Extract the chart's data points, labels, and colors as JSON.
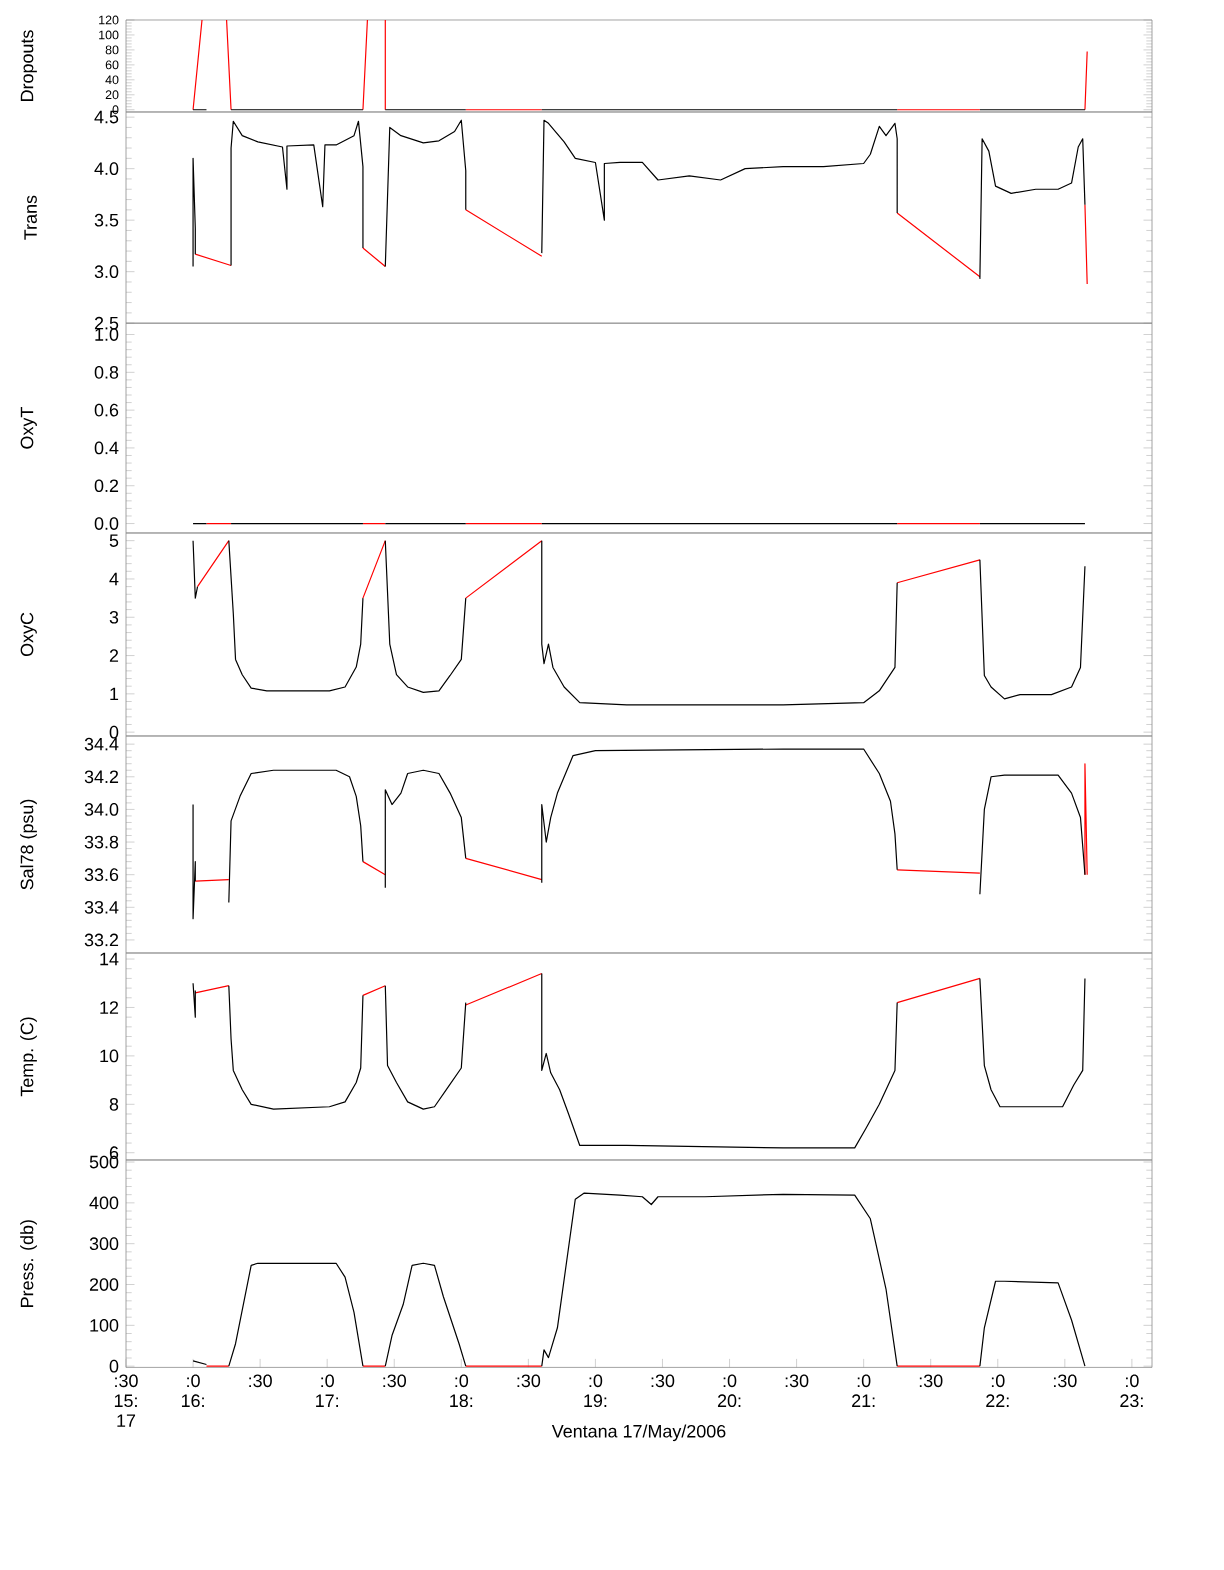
{
  "chart_data": [
    {
      "type": "line",
      "ylabel": "Dropouts",
      "xlim": [
        "2006-05-17T15:30",
        "2006-05-17T23:09"
      ],
      "ylim": [
        -3,
        120
      ],
      "yticks": [
        0,
        20,
        40,
        60,
        80,
        100,
        120
      ],
      "tick_labels": "y",
      "marker": "none",
      "line_style": "solid",
      "series": [
        {
          "color": "#ff0000",
          "x": [
            "2006-05-17T16:00",
            "2006-05-17T16:04",
            null,
            "2006-05-17T16:15",
            "2006-05-17T16:17",
            null,
            "2006-05-17T17:16",
            "2006-05-17T17:18",
            null,
            "2006-05-17T17:26",
            "2006-05-17T17:26",
            null,
            "2006-05-17T18:02",
            "2006-05-17T18:36",
            null,
            "2006-05-17T21:15",
            "2006-05-17T21:52",
            null,
            "2006-05-17T22:39",
            "2006-05-17T22:40"
          ],
          "values": [
            0,
            120,
            null,
            120,
            0,
            null,
            0,
            120,
            null,
            120,
            0,
            null,
            0,
            0,
            null,
            0,
            0,
            null,
            0,
            78
          ]
        },
        {
          "color": "#000000",
          "x": [
            "2006-05-17T16:00",
            "2006-05-17T16:06",
            null,
            "2006-05-17T16:17",
            "2006-05-17T17:16",
            null,
            "2006-05-17T17:26",
            "2006-05-17T18:02",
            null,
            "2006-05-17T18:36",
            "2006-05-17T21:15",
            null,
            "2006-05-17T21:52",
            "2006-05-17T22:39"
          ],
          "values": [
            0,
            0,
            null,
            0,
            0,
            null,
            0,
            0,
            null,
            0,
            0,
            null,
            0,
            0
          ]
        }
      ]
    },
    {
      "type": "line",
      "ylabel": "Trans",
      "xlim": [
        "2006-05-17T15:30",
        "2006-05-17T23:09"
      ],
      "ylim": [
        2.5,
        4.55
      ],
      "yticks": [
        {
          "value": 2.5,
          "label": "2.5"
        },
        {
          "value": 3,
          "label": "3.0"
        },
        {
          "value": 3.5,
          "label": "3.5"
        },
        {
          "value": 4,
          "label": "4.0"
        },
        {
          "value": 4.5,
          "label": "4.5"
        }
      ],
      "tick_labels": "y",
      "marker": "none",
      "line_style": "solid",
      "series": [
        {
          "color": "#ff0000",
          "x": [
            "2006-05-17T16:01",
            "2006-05-17T16:17",
            null,
            "2006-05-17T17:16",
            "2006-05-17T17:26",
            null,
            "2006-05-17T18:02",
            "2006-05-17T18:36",
            null,
            "2006-05-17T21:15",
            "2006-05-17T21:52",
            null,
            "2006-05-17T22:39",
            "2006-05-17T22:40"
          ],
          "values": [
            3.17,
            3.06,
            null,
            3.23,
            3.05,
            null,
            3.6,
            3.15,
            null,
            3.57,
            2.95,
            null,
            3.65,
            2.88
          ]
        },
        {
          "color": "#000000",
          "x": [
            "2006-05-17T16:00",
            "2006-05-17T16:00",
            "2006-05-17T16:01",
            "2006-05-17T16:01",
            null,
            "2006-05-17T16:17",
            "2006-05-17T16:17",
            "2006-05-17T16:18",
            "2006-05-17T16:22",
            "2006-05-17T16:29",
            "2006-05-17T16:40",
            "2006-05-17T16:42",
            "2006-05-17T16:42",
            "2006-05-17T16:54",
            "2006-05-17T16:58",
            "2006-05-17T16:59",
            "2006-05-17T17:04",
            "2006-05-17T17:12",
            "2006-05-17T17:14",
            "2006-05-17T17:16",
            "2006-05-17T17:16",
            null,
            "2006-05-17T17:26",
            "2006-05-17T17:28",
            "2006-05-17T17:33",
            "2006-05-17T17:43",
            "2006-05-17T17:50",
            "2006-05-17T17:57",
            "2006-05-17T18:00",
            "2006-05-17T18:02",
            "2006-05-17T18:02",
            null,
            "2006-05-17T18:36",
            "2006-05-17T18:37",
            "2006-05-17T18:39",
            "2006-05-17T18:46",
            "2006-05-17T18:51",
            "2006-05-17T19:00",
            "2006-05-17T19:04",
            "2006-05-17T19:04",
            "2006-05-17T19:11",
            "2006-05-17T19:21",
            "2006-05-17T19:28",
            "2006-05-17T19:42",
            "2006-05-17T19:56",
            "2006-05-17T20:07",
            "2006-05-17T20:24",
            "2006-05-17T20:42",
            "2006-05-17T21:00",
            "2006-05-17T21:03",
            "2006-05-17T21:07",
            "2006-05-17T21:10",
            "2006-05-17T21:14",
            "2006-05-17T21:15",
            "2006-05-17T21:15",
            null,
            "2006-05-17T21:52",
            "2006-05-17T21:53",
            "2006-05-17T21:56",
            "2006-05-17T21:59",
            "2006-05-17T22:06",
            "2006-05-17T22:17",
            "2006-05-17T22:27",
            "2006-05-17T22:33",
            "2006-05-17T22:36",
            "2006-05-17T22:38",
            "2006-05-17T22:39"
          ],
          "values": [
            3.05,
            4.1,
            3.42,
            3.17,
            null,
            3.06,
            4.2,
            4.46,
            4.32,
            4.26,
            4.21,
            3.8,
            4.22,
            4.23,
            3.63,
            4.23,
            4.23,
            4.32,
            4.46,
            4.02,
            3.23,
            null,
            3.05,
            4.4,
            4.32,
            4.25,
            4.27,
            4.36,
            4.47,
            3.98,
            3.6,
            null,
            3.18,
            4.47,
            4.44,
            4.26,
            4.1,
            4.06,
            3.5,
            4.05,
            4.06,
            4.06,
            3.89,
            3.93,
            3.89,
            4.0,
            4.02,
            4.02,
            4.05,
            4.14,
            4.41,
            4.32,
            4.44,
            4.29,
            3.57,
            null,
            2.93,
            4.29,
            4.17,
            3.83,
            3.76,
            3.8,
            3.8,
            3.86,
            4.21,
            4.29,
            3.65
          ]
        }
      ]
    },
    {
      "type": "line",
      "ylabel": "OxyT",
      "xlim": [
        "2006-05-17T15:30",
        "2006-05-17T23:09"
      ],
      "ylim": [
        -0.05,
        1.06
      ],
      "yticks": [
        {
          "value": 0,
          "label": "0.0"
        },
        {
          "value": 0.2,
          "label": "0.2"
        },
        {
          "value": 0.4,
          "label": "0.4"
        },
        {
          "value": 0.6,
          "label": "0.6"
        },
        {
          "value": 0.8,
          "label": "0.8"
        },
        {
          "value": 1,
          "label": "1.0"
        }
      ],
      "tick_labels": "y",
      "marker": "none",
      "line_style": "solid",
      "series": [
        {
          "color": "#ff0000",
          "x": [
            "2006-05-17T16:06",
            "2006-05-17T16:17",
            null,
            "2006-05-17T17:16",
            "2006-05-17T17:26",
            null,
            "2006-05-17T18:02",
            "2006-05-17T18:36",
            null,
            "2006-05-17T21:15",
            "2006-05-17T21:52"
          ],
          "values": [
            0,
            0,
            null,
            0,
            0,
            null,
            0,
            0,
            null,
            0,
            0
          ]
        },
        {
          "color": "#000000",
          "x": [
            "2006-05-17T16:00",
            "2006-05-17T16:06",
            null,
            "2006-05-17T16:17",
            "2006-05-17T17:16",
            null,
            "2006-05-17T17:26",
            "2006-05-17T18:02",
            null,
            "2006-05-17T18:36",
            "2006-05-17T21:15",
            null,
            "2006-05-17T21:52",
            "2006-05-17T22:39"
          ],
          "values": [
            0,
            0,
            null,
            0,
            0,
            null,
            0,
            0,
            null,
            0,
            0,
            null,
            0,
            0
          ]
        }
      ]
    },
    {
      "type": "line",
      "ylabel": "OxyC",
      "xlim": [
        "2006-05-17T15:30",
        "2006-05-17T23:09"
      ],
      "ylim": [
        -0.1,
        5.2
      ],
      "yticks": [
        0,
        1,
        2,
        3,
        4,
        5
      ],
      "tick_labels": "y",
      "marker": "none",
      "line_style": "solid",
      "series": [
        {
          "color": "#ff0000",
          "x": [
            "2006-05-17T16:02",
            "2006-05-17T16:16",
            null,
            "2006-05-17T17:16",
            "2006-05-17T17:26",
            null,
            "2006-05-17T18:02",
            "2006-05-17T18:36",
            null,
            "2006-05-17T21:15",
            "2006-05-17T21:52"
          ],
          "values": [
            3.8,
            5.0,
            null,
            3.5,
            5.0,
            null,
            3.5,
            5.0,
            null,
            3.9,
            4.5
          ]
        },
        {
          "color": "#000000",
          "x": [
            "2006-05-17T16:00",
            "2006-05-17T16:01",
            "2006-05-17T16:02",
            null,
            "2006-05-17T16:16",
            "2006-05-17T16:18",
            "2006-05-17T16:19",
            "2006-05-17T16:22",
            "2006-05-17T16:26",
            "2006-05-17T16:33",
            "2006-05-17T17:01",
            "2006-05-17T17:08",
            "2006-05-17T17:13",
            "2006-05-17T17:15",
            "2006-05-17T17:16",
            null,
            "2006-05-17T17:26",
            "2006-05-17T17:28",
            "2006-05-17T17:31",
            "2006-05-17T17:36",
            "2006-05-17T17:43",
            "2006-05-17T17:50",
            "2006-05-17T17:55",
            "2006-05-17T18:00",
            "2006-05-17T18:02",
            null,
            "2006-05-17T18:36",
            "2006-05-17T18:36",
            "2006-05-17T18:37",
            "2006-05-17T18:39",
            "2006-05-17T18:41",
            "2006-05-17T18:46",
            "2006-05-17T18:53",
            "2006-05-17T19:14",
            "2006-05-17T20:24",
            "2006-05-17T21:00",
            "2006-05-17T21:07",
            "2006-05-17T21:14",
            "2006-05-17T21:15",
            null,
            "2006-05-17T21:52",
            "2006-05-17T21:54",
            "2006-05-17T21:57",
            "2006-05-17T22:03",
            "2006-05-17T22:10",
            "2006-05-17T22:24",
            "2006-05-17T22:33",
            "2006-05-17T22:37",
            "2006-05-17T22:39"
          ],
          "values": [
            5.0,
            3.5,
            3.8,
            null,
            5.0,
            3.1,
            1.9,
            1.5,
            1.15,
            1.08,
            1.08,
            1.18,
            1.7,
            2.3,
            3.5,
            null,
            5.0,
            2.3,
            1.5,
            1.18,
            1.04,
            1.08,
            1.48,
            1.9,
            3.5,
            null,
            5.0,
            2.3,
            1.79,
            2.3,
            1.69,
            1.18,
            0.77,
            0.71,
            0.71,
            0.77,
            1.08,
            1.69,
            3.9,
            null,
            4.5,
            1.48,
            1.18,
            0.87,
            0.98,
            0.98,
            1.18,
            1.69,
            4.33
          ]
        }
      ]
    },
    {
      "type": "line",
      "ylabel": "Sal78 (psu)",
      "xlim": [
        "2006-05-17T15:30",
        "2006-05-17T23:09"
      ],
      "ylim": [
        33.12,
        34.45
      ],
      "yticks": [
        33.2,
        33.4,
        33.6,
        33.8,
        {
          "value": 34,
          "label": "34.0"
        },
        34.2,
        34.4
      ],
      "tick_labels": "y",
      "marker": "none",
      "line_style": "solid",
      "series": [
        {
          "color": "#ff0000",
          "x": [
            "2006-05-17T16:01",
            "2006-05-17T16:16",
            null,
            "2006-05-17T17:16",
            "2006-05-17T17:26",
            null,
            "2006-05-17T18:02",
            "2006-05-17T18:36",
            null,
            "2006-05-17T21:15",
            "2006-05-17T21:52",
            null,
            "2006-05-17T22:39",
            "2006-05-17T22:39",
            "2006-05-17T22:40"
          ],
          "values": [
            33.56,
            33.57,
            null,
            33.68,
            33.6,
            null,
            33.7,
            33.57,
            null,
            33.63,
            33.61,
            null,
            33.6,
            34.28,
            33.6
          ]
        },
        {
          "color": "#000000",
          "x": [
            "2006-05-17T16:00",
            "2006-05-17T16:00",
            "2006-05-17T16:01",
            "2006-05-17T16:01",
            null,
            "2006-05-17T16:16",
            "2006-05-17T16:17",
            "2006-05-17T16:21",
            "2006-05-17T16:26",
            "2006-05-17T16:36",
            "2006-05-17T17:04",
            "2006-05-17T17:10",
            "2006-05-17T17:13",
            "2006-05-17T17:15",
            "2006-05-17T17:16",
            null,
            "2006-05-17T17:26",
            "2006-05-17T17:26",
            "2006-05-17T17:29",
            "2006-05-17T17:33",
            "2006-05-17T17:36",
            "2006-05-17T17:43",
            "2006-05-17T17:50",
            "2006-05-17T17:55",
            "2006-05-17T18:00",
            "2006-05-17T18:02",
            null,
            "2006-05-17T18:36",
            "2006-05-17T18:36",
            "2006-05-17T18:38",
            "2006-05-17T18:40",
            "2006-05-17T18:43",
            "2006-05-17T18:50",
            "2006-05-17T19:00",
            "2006-05-17T20:24",
            "2006-05-17T21:00",
            "2006-05-17T21:07",
            "2006-05-17T21:12",
            "2006-05-17T21:14",
            "2006-05-17T21:15",
            null,
            "2006-05-17T21:52",
            "2006-05-17T21:54",
            "2006-05-17T21:57",
            "2006-05-17T22:03",
            "2006-05-17T22:27",
            "2006-05-17T22:33",
            "2006-05-17T22:37",
            "2006-05-17T22:39"
          ],
          "values": [
            34.03,
            33.33,
            33.68,
            33.56,
            null,
            33.43,
            33.93,
            34.08,
            34.22,
            34.24,
            34.24,
            34.2,
            34.08,
            33.9,
            33.68,
            null,
            33.52,
            34.12,
            34.03,
            34.1,
            34.22,
            34.24,
            34.22,
            34.1,
            33.95,
            33.7,
            null,
            33.55,
            34.03,
            33.8,
            33.95,
            34.1,
            34.33,
            34.36,
            34.37,
            34.37,
            34.22,
            34.05,
            33.85,
            33.63,
            null,
            33.48,
            34.0,
            34.2,
            34.21,
            34.21,
            34.1,
            33.95,
            33.6
          ]
        }
      ]
    },
    {
      "type": "line",
      "ylabel": "Temp. (C)",
      "xlim": [
        "2006-05-17T15:30",
        "2006-05-17T23:09"
      ],
      "ylim": [
        5.7,
        14.25
      ],
      "yticks": [
        6,
        8,
        10,
        12,
        14
      ],
      "tick_labels": "y",
      "marker": "none",
      "line_style": "solid",
      "series": [
        {
          "color": "#ff0000",
          "x": [
            "2006-05-17T16:01",
            "2006-05-17T16:16",
            null,
            "2006-05-17T17:16",
            "2006-05-17T17:26",
            null,
            "2006-05-17T18:02",
            "2006-05-17T18:36",
            null,
            "2006-05-17T21:15",
            "2006-05-17T21:52"
          ],
          "values": [
            12.6,
            12.9,
            null,
            12.5,
            12.9,
            null,
            12.1,
            13.4,
            null,
            12.2,
            13.2
          ]
        },
        {
          "color": "#000000",
          "x": [
            "2006-05-17T16:00",
            "2006-05-17T16:01",
            "2006-05-17T16:01",
            null,
            "2006-05-17T16:16",
            "2006-05-17T16:17",
            "2006-05-17T16:18",
            "2006-05-17T16:22",
            "2006-05-17T16:26",
            "2006-05-17T16:36",
            "2006-05-17T17:01",
            "2006-05-17T17:08",
            "2006-05-17T17:13",
            "2006-05-17T17:15",
            "2006-05-17T17:16",
            null,
            "2006-05-17T17:26",
            "2006-05-17T17:27",
            "2006-05-17T17:31",
            "2006-05-17T17:36",
            "2006-05-17T17:43",
            "2006-05-17T17:48",
            "2006-05-17T17:54",
            "2006-05-17T18:00",
            "2006-05-17T18:02",
            null,
            "2006-05-17T18:36",
            "2006-05-17T18:36",
            "2006-05-17T18:38",
            "2006-05-17T18:40",
            "2006-05-17T18:44",
            "2006-05-17T18:48",
            "2006-05-17T18:53",
            "2006-05-17T19:14",
            "2006-05-17T20:24",
            "2006-05-17T20:56",
            "2006-05-17T21:01",
            "2006-05-17T21:07",
            "2006-05-17T21:14",
            "2006-05-17T21:15",
            null,
            "2006-05-17T21:52",
            "2006-05-17T21:54",
            "2006-05-17T21:57",
            "2006-05-17T22:01",
            "2006-05-17T22:29",
            "2006-05-17T22:34",
            "2006-05-17T22:38",
            "2006-05-17T22:39"
          ],
          "values": [
            13.0,
            11.6,
            12.7,
            null,
            12.9,
            10.7,
            9.4,
            8.6,
            8.0,
            7.8,
            7.9,
            8.1,
            8.9,
            9.5,
            12.5,
            null,
            12.9,
            9.6,
            8.9,
            8.1,
            7.8,
            7.9,
            8.7,
            9.5,
            12.2,
            null,
            13.4,
            9.4,
            10.1,
            9.3,
            8.6,
            7.6,
            6.3,
            6.3,
            6.2,
            6.2,
            7.0,
            8.0,
            9.4,
            12.2,
            null,
            13.2,
            9.6,
            8.6,
            7.9,
            7.9,
            8.8,
            9.4,
            13.2
          ]
        }
      ]
    },
    {
      "type": "line",
      "ylabel": "Press. (db)",
      "xlabel": "Ventana 17/May/2006",
      "xlim": [
        "2006-05-17T15:30",
        "2006-05-17T23:09"
      ],
      "ylim": [
        -3,
        505
      ],
      "yticks": [
        0,
        100,
        200,
        300,
        400,
        500
      ],
      "marker": "none",
      "line_style": "solid",
      "xticks": [
        {
          "value": "2006-05-17T15:30",
          "label": ":30\n15:\n17"
        },
        {
          "value": "2006-05-17T16:00",
          "label": ":0\n16:"
        },
        {
          "value": "2006-05-17T16:30",
          "label": ":30"
        },
        {
          "value": "2006-05-17T17:00",
          "label": ":0\n17:"
        },
        {
          "value": "2006-05-17T17:30",
          "label": ":30"
        },
        {
          "value": "2006-05-17T18:00",
          "label": ":0\n18:"
        },
        {
          "value": "2006-05-17T18:30",
          "label": ":30"
        },
        {
          "value": "2006-05-17T19:00",
          "label": ":0\n19:"
        },
        {
          "value": "2006-05-17T19:30",
          "label": ":30"
        },
        {
          "value": "2006-05-17T20:00",
          "label": ":0\n20:"
        },
        {
          "value": "2006-05-17T20:30",
          "label": ":30"
        },
        {
          "value": "2006-05-17T21:00",
          "label": ":0\n21:"
        },
        {
          "value": "2006-05-17T21:30",
          "label": ":30"
        },
        {
          "value": "2006-05-17T22:00",
          "label": ":0\n22:"
        },
        {
          "value": "2006-05-17T22:30",
          "label": ":30"
        },
        {
          "value": "2006-05-17T23:00",
          "label": ":0\n23:"
        }
      ],
      "series": [
        {
          "color": "#ff0000",
          "x": [
            "2006-05-17T16:06",
            "2006-05-17T16:16",
            null,
            "2006-05-17T17:16",
            "2006-05-17T17:26",
            null,
            "2006-05-17T18:02",
            "2006-05-17T18:36",
            null,
            "2006-05-17T21:15",
            "2006-05-17T21:52"
          ],
          "values": [
            0,
            0,
            null,
            0,
            0,
            null,
            0,
            0,
            null,
            0,
            0
          ]
        },
        {
          "color": "#000000",
          "x": [
            "2006-05-17T16:00",
            "2006-05-17T16:06",
            null,
            "2006-05-17T16:16",
            "2006-05-17T16:19",
            "2006-05-17T16:26",
            "2006-05-17T16:29",
            "2006-05-17T17:04",
            "2006-05-17T17:08",
            "2006-05-17T17:12",
            "2006-05-17T17:16",
            null,
            "2006-05-17T17:26",
            "2006-05-17T17:29",
            "2006-05-17T17:34",
            "2006-05-17T17:38",
            "2006-05-17T17:43",
            "2006-05-17T17:48",
            "2006-05-17T17:52",
            "2006-05-17T17:59",
            "2006-05-17T18:02",
            null,
            "2006-05-17T18:36",
            "2006-05-17T18:37",
            "2006-05-17T18:39",
            "2006-05-17T18:43",
            "2006-05-17T18:51",
            "2006-05-17T18:55",
            "2006-05-17T19:11",
            "2006-05-17T19:21",
            "2006-05-17T19:25",
            "2006-05-17T19:28",
            "2006-05-17T19:49",
            "2006-05-17T20:24",
            "2006-05-17T20:56",
            "2006-05-17T21:03",
            "2006-05-17T21:10",
            "2006-05-17T21:15",
            null,
            "2006-05-17T21:52",
            "2006-05-17T21:54",
            "2006-05-17T21:59",
            "2006-05-17T22:03",
            "2006-05-17T22:27",
            "2006-05-17T22:33",
            "2006-05-17T22:39"
          ],
          "values": [
            13,
            4,
            null,
            0,
            55,
            247,
            252,
            252,
            218,
            132,
            0,
            null,
            0,
            75,
            151,
            247,
            252,
            247,
            170,
            55,
            0,
            null,
            0,
            40,
            21,
            94,
            409,
            424,
            419,
            415,
            396,
            415,
            415,
            421,
            419,
            361,
            189,
            0,
            null,
            0,
            94,
            208,
            208,
            204,
            113,
            0
          ]
        }
      ]
    }
  ]
}
